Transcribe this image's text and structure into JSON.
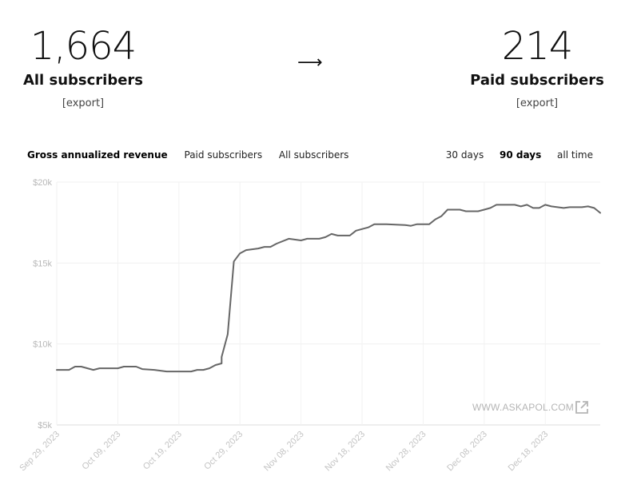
{
  "stats": {
    "all": {
      "number": "1,664",
      "label": "All subscribers",
      "export": "[export]"
    },
    "paid": {
      "number": "214",
      "label": "Paid subscribers",
      "export": "[export]"
    },
    "arrow": "⟶"
  },
  "tabs": [
    {
      "label": "Gross annualized revenue",
      "active": true
    },
    {
      "label": "Paid subscribers",
      "active": false
    },
    {
      "label": "All subscribers",
      "active": false
    }
  ],
  "ranges": [
    {
      "label": "30 days",
      "active": false
    },
    {
      "label": "90 days",
      "active": true
    },
    {
      "label": "all time",
      "active": false
    }
  ],
  "watermark": "WWW.ASKAPOL.COM",
  "chart_data": {
    "type": "line",
    "ylim": [
      5000,
      20000
    ],
    "yticks": [
      {
        "value": 20000,
        "label": "$20k"
      },
      {
        "value": 15000,
        "label": "$15k"
      },
      {
        "value": 10000,
        "label": "$10k"
      },
      {
        "value": 5000,
        "label": "$5k"
      }
    ],
    "xstart": "2023-09-29",
    "xend": "2023-12-27",
    "xticks": [
      {
        "date": "2023-09-29",
        "label": "Sep 29, 2023"
      },
      {
        "date": "2023-10-09",
        "label": "Oct 09, 2023"
      },
      {
        "date": "2023-10-19",
        "label": "Oct 19, 2023"
      },
      {
        "date": "2023-10-29",
        "label": "Oct 29, 2023"
      },
      {
        "date": "2023-11-08",
        "label": "Nov 08, 2023"
      },
      {
        "date": "2023-11-18",
        "label": "Nov 18, 2023"
      },
      {
        "date": "2023-11-28",
        "label": "Nov 28, 2023"
      },
      {
        "date": "2023-12-08",
        "label": "Dec 08, 2023"
      },
      {
        "date": "2023-12-18",
        "label": "Dec 18, 2023"
      }
    ],
    "series": [
      {
        "color": "#666666",
        "points": [
          [
            "2023-09-29",
            8400
          ],
          [
            "2023-10-01",
            8400
          ],
          [
            "2023-10-02",
            8600
          ],
          [
            "2023-10-03",
            8600
          ],
          [
            "2023-10-05",
            8400
          ],
          [
            "2023-10-06",
            8500
          ],
          [
            "2023-10-09",
            8500
          ],
          [
            "2023-10-10",
            8600
          ],
          [
            "2023-10-12",
            8600
          ],
          [
            "2023-10-13",
            8450
          ],
          [
            "2023-10-15",
            8400
          ],
          [
            "2023-10-17",
            8300
          ],
          [
            "2023-10-19",
            8300
          ],
          [
            "2023-10-21",
            8300
          ],
          [
            "2023-10-22",
            8400
          ],
          [
            "2023-10-23",
            8400
          ],
          [
            "2023-10-24",
            8500
          ],
          [
            "2023-10-25",
            8700
          ],
          [
            "2023-10-26",
            8800
          ],
          [
            "2023-10-26",
            9200
          ],
          [
            "2023-10-27",
            10600
          ],
          [
            "2023-10-28",
            15100
          ],
          [
            "2023-10-29",
            15600
          ],
          [
            "2023-10-30",
            15800
          ],
          [
            "2023-11-01",
            15900
          ],
          [
            "2023-11-02",
            16000
          ],
          [
            "2023-11-03",
            16000
          ],
          [
            "2023-11-04",
            16200
          ],
          [
            "2023-11-06",
            16500
          ],
          [
            "2023-11-08",
            16400
          ],
          [
            "2023-11-09",
            16500
          ],
          [
            "2023-11-11",
            16500
          ],
          [
            "2023-11-12",
            16600
          ],
          [
            "2023-11-13",
            16800
          ],
          [
            "2023-11-14",
            16700
          ],
          [
            "2023-11-16",
            16700
          ],
          [
            "2023-11-17",
            17000
          ],
          [
            "2023-11-19",
            17200
          ],
          [
            "2023-11-20",
            17400
          ],
          [
            "2023-11-22",
            17400
          ],
          [
            "2023-11-25",
            17350
          ],
          [
            "2023-11-26",
            17300
          ],
          [
            "2023-11-27",
            17400
          ],
          [
            "2023-11-29",
            17400
          ],
          [
            "2023-11-30",
            17700
          ],
          [
            "2023-12-01",
            17900
          ],
          [
            "2023-12-02",
            18300
          ],
          [
            "2023-12-04",
            18300
          ],
          [
            "2023-12-05",
            18200
          ],
          [
            "2023-12-07",
            18200
          ],
          [
            "2023-12-08",
            18300
          ],
          [
            "2023-12-09",
            18400
          ],
          [
            "2023-12-10",
            18600
          ],
          [
            "2023-12-13",
            18600
          ],
          [
            "2023-12-14",
            18500
          ],
          [
            "2023-12-15",
            18600
          ],
          [
            "2023-12-16",
            18400
          ],
          [
            "2023-12-17",
            18400
          ],
          [
            "2023-12-18",
            18600
          ],
          [
            "2023-12-19",
            18500
          ],
          [
            "2023-12-21",
            18400
          ],
          [
            "2023-12-22",
            18450
          ],
          [
            "2023-12-24",
            18450
          ],
          [
            "2023-12-25",
            18500
          ],
          [
            "2023-12-26",
            18400
          ],
          [
            "2023-12-27",
            18100
          ]
        ]
      }
    ]
  }
}
